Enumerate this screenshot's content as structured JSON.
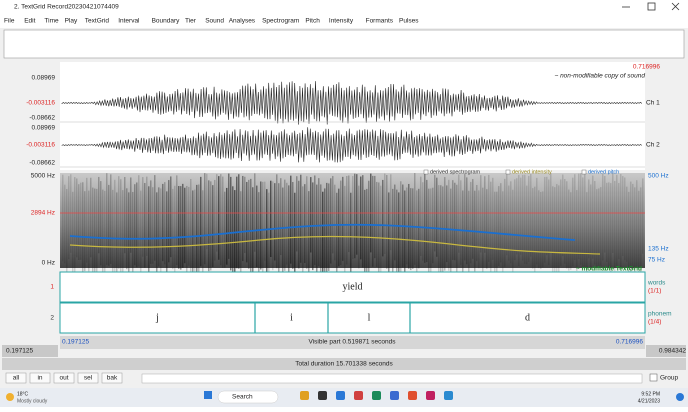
{
  "window": {
    "title": "2. TextGrid Record20230421074409"
  },
  "menu": [
    "File",
    "Edit",
    "Time",
    "Play",
    "TextGrid",
    "Interval",
    "Boundary",
    "Tier",
    "Sound",
    "Analyses",
    "Spectrogram",
    "Pitch",
    "Intensity",
    "Formants",
    "Pulses"
  ],
  "waveform": {
    "end_time": "0.716996",
    "note": "~ non-modifiable copy of sound",
    "channels": [
      {
        "top": "0.08969",
        "mid": "-0.003116",
        "bottom": "-0.08662",
        "label": "Ch 1"
      },
      {
        "top": "0.08969",
        "mid": "-0.003116",
        "bottom": "-0.08662",
        "label": "Ch 2"
      }
    ]
  },
  "spectrogram": {
    "top": "5000 Hz",
    "mid": "2894 Hz",
    "bottom": "0 Hz",
    "pitch_top": "500 Hz",
    "pitch_mid": "135 Hz",
    "pitch_bottom": "75 Hz",
    "legend": [
      "derived spectrogram",
      "derived intensity",
      "derived pitch"
    ],
    "textgrid_note": "~ modifiable TextGrid"
  },
  "tiers": [
    {
      "number": "1",
      "name": "words",
      "count": "(1/1)",
      "intervals": [
        "yield"
      ]
    },
    {
      "number": "2",
      "name": "phonem",
      "count": "(1/4)",
      "intervals": [
        "j",
        "i",
        "l",
        "d"
      ]
    }
  ],
  "time": {
    "window_start": "0.197125",
    "visible_start": "0.197125",
    "visible": "Visible part 0.519871 seconds",
    "visible_end": "0.716996",
    "window_end": "0.984342",
    "total": "Total duration 15.701338 seconds"
  },
  "buttons": [
    "all",
    "in",
    "out",
    "sel",
    "bak"
  ],
  "group": "Group",
  "taskbar": {
    "weather": "18°C",
    "weather_note": "Mostly cloudy",
    "search": "Search",
    "time": "9:52 PM",
    "date": "4/21/2023"
  }
}
